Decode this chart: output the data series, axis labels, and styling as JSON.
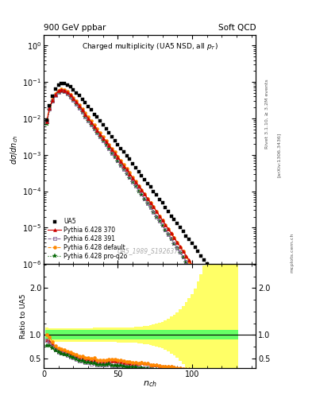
{
  "title_top_left": "900 GeV ppbar",
  "title_top_right": "Soft QCD",
  "plot_title": "Charged multiplicity (UA5 NSD, all p_{T})",
  "xlabel": "n_{ch}",
  "ylabel_main": "d#sigma/dn_{ch}",
  "ylabel_ratio": "Ratio to UA5",
  "right_label1": "Rivet 3.1.10, ≥ 3.2M events",
  "right_label2": "[arXiv:1306.3436]",
  "right_label3": "mcplots.cern.ch",
  "watermark": "UA5_1989_S1926373",
  "ua5_nch": [
    2,
    4,
    6,
    8,
    10,
    12,
    14,
    16,
    18,
    20,
    22,
    24,
    26,
    28,
    30,
    32,
    34,
    36,
    38,
    40,
    42,
    44,
    46,
    48,
    50,
    52,
    54,
    56,
    58,
    60,
    62,
    64,
    66,
    68,
    70,
    72,
    74,
    76,
    78,
    80,
    82,
    84,
    86,
    88,
    90,
    92,
    94,
    96,
    98,
    100,
    102,
    104,
    106,
    108,
    110,
    112,
    114,
    116,
    118,
    120,
    122,
    124,
    126,
    128,
    130
  ],
  "ua5_vals": [
    0.009,
    0.022,
    0.04,
    0.063,
    0.083,
    0.092,
    0.09,
    0.083,
    0.073,
    0.061,
    0.051,
    0.042,
    0.033,
    0.027,
    0.021,
    0.017,
    0.013,
    0.011,
    0.0085,
    0.0067,
    0.0052,
    0.004,
    0.0031,
    0.0025,
    0.0019,
    0.0015,
    0.0012,
    0.00095,
    0.00075,
    0.00058,
    0.00045,
    0.00035,
    0.00027,
    0.00021,
    0.00016,
    0.00013,
    0.0001,
    7.8e-05,
    6e-05,
    4.8e-05,
    3.6e-05,
    2.8e-05,
    2.1e-05,
    1.7e-05,
    1.3e-05,
    1e-05,
    7.8e-06,
    6e-06,
    4.8e-06,
    3.8e-06,
    2.9e-06,
    2.2e-06,
    1.7e-06,
    1.3e-06,
    1e-06,
    7.8e-07,
    6e-07,
    4.5e-07,
    3.5e-07,
    2.8e-07,
    2.2e-07,
    1.5e-07,
    1.1e-07,
    8e-08,
    6.5e-08
  ],
  "py370_nch": [
    2,
    4,
    6,
    8,
    10,
    12,
    14,
    16,
    18,
    20,
    22,
    24,
    26,
    28,
    30,
    32,
    34,
    36,
    38,
    40,
    42,
    44,
    46,
    48,
    50,
    52,
    54,
    56,
    58,
    60,
    62,
    64,
    66,
    68,
    70,
    72,
    74,
    76,
    78,
    80,
    82,
    84,
    86,
    88,
    90,
    92,
    94,
    96,
    98,
    100,
    102,
    104,
    106,
    108,
    110,
    112,
    114,
    116,
    118,
    120,
    122,
    124,
    126,
    128,
    130,
    132,
    134,
    136,
    138,
    140
  ],
  "py370_vals": [
    0.008,
    0.019,
    0.032,
    0.046,
    0.057,
    0.062,
    0.059,
    0.052,
    0.044,
    0.035,
    0.028,
    0.022,
    0.017,
    0.013,
    0.01,
    0.0079,
    0.0061,
    0.0048,
    0.0037,
    0.0029,
    0.0023,
    0.0018,
    0.0014,
    0.0011,
    0.00085,
    0.00065,
    0.0005,
    0.00039,
    0.0003,
    0.00023,
    0.00018,
    0.00014,
    0.00011,
    8.3e-05,
    6.3e-05,
    4.8e-05,
    3.7e-05,
    2.8e-05,
    2.1e-05,
    1.6e-05,
    1.2e-05,
    9.2e-06,
    7e-06,
    5.2e-06,
    3.9e-06,
    3e-06,
    2.2e-06,
    1.7e-06,
    1.3e-06,
    9.5e-07,
    7.2e-07,
    5.4e-07,
    4e-07,
    3e-07,
    2.2e-07,
    1.7e-07,
    1.2e-07,
    9e-08,
    6.7e-08,
    5e-08,
    3.7e-08,
    2.7e-08,
    2e-08,
    1.5e-08,
    1.1e-08,
    8e-09,
    6e-09,
    4.5e-09,
    3.3e-09,
    2.5e-09
  ],
  "py391_nch": [
    2,
    4,
    6,
    8,
    10,
    12,
    14,
    16,
    18,
    20,
    22,
    24,
    26,
    28,
    30,
    32,
    34,
    36,
    38,
    40,
    42,
    44,
    46,
    48,
    50,
    52,
    54,
    56,
    58,
    60,
    62,
    64,
    66,
    68,
    70,
    72,
    74,
    76,
    78,
    80,
    82,
    84,
    86,
    88,
    90,
    92,
    94,
    96,
    98,
    100,
    102,
    104,
    106,
    108,
    110,
    112,
    114,
    116,
    118,
    120,
    122,
    124,
    126,
    128,
    130,
    132,
    134,
    136,
    138,
    140
  ],
  "py391_vals": [
    0.008,
    0.018,
    0.03,
    0.043,
    0.053,
    0.057,
    0.054,
    0.047,
    0.039,
    0.031,
    0.025,
    0.019,
    0.015,
    0.011,
    0.0086,
    0.0066,
    0.0051,
    0.004,
    0.0031,
    0.0024,
    0.0019,
    0.0015,
    0.0011,
    0.00088,
    0.00068,
    0.00052,
    0.0004,
    0.00031,
    0.00024,
    0.00018,
    0.00014,
    0.00011,
    8.2e-05,
    6.2e-05,
    4.7e-05,
    3.6e-05,
    2.7e-05,
    2e-05,
    1.5e-05,
    1.2e-05,
    8.8e-06,
    6.6e-06,
    5e-06,
    3.7e-06,
    2.8e-06,
    2.1e-06,
    1.6e-06,
    1.2e-06,
    9e-07,
    6.7e-07,
    5e-07,
    3.7e-07,
    2.8e-07,
    2e-07,
    1.5e-07,
    1.1e-07,
    8.3e-08,
    6.1e-08,
    4.5e-08,
    3.3e-08,
    2.4e-08,
    1.8e-08,
    1.3e-08,
    9.5e-09,
    7e-09,
    5.1e-09,
    3.8e-09,
    2.8e-09,
    2e-09,
    1.5e-09
  ],
  "pydef_nch": [
    2,
    4,
    6,
    8,
    10,
    12,
    14,
    16,
    18,
    20,
    22,
    24,
    26,
    28,
    30,
    32,
    34,
    36,
    38,
    40,
    42,
    44,
    46,
    48,
    50,
    52,
    54,
    56,
    58,
    60,
    62,
    64,
    66,
    68,
    70,
    72,
    74,
    76,
    78,
    80,
    82,
    84,
    86,
    88,
    90,
    92,
    94,
    96,
    98,
    100,
    102,
    104,
    106,
    108,
    110,
    112,
    114,
    116,
    118,
    120,
    122,
    124,
    126,
    128,
    130,
    132,
    134,
    136,
    138,
    140
  ],
  "pydef_vals": [
    0.009,
    0.021,
    0.034,
    0.048,
    0.059,
    0.064,
    0.061,
    0.054,
    0.046,
    0.037,
    0.03,
    0.023,
    0.018,
    0.014,
    0.011,
    0.0085,
    0.0066,
    0.0051,
    0.004,
    0.0031,
    0.0024,
    0.0019,
    0.0015,
    0.0012,
    0.0009,
    0.00069,
    0.00053,
    0.00041,
    0.00032,
    0.00024,
    0.00019,
    0.00014,
    0.00011,
    8.3e-05,
    6.3e-05,
    4.8e-05,
    3.7e-05,
    2.8e-05,
    2.1e-05,
    1.6e-05,
    1.2e-05,
    9.1e-06,
    6.9e-06,
    5.2e-06,
    3.9e-06,
    2.9e-06,
    2.2e-06,
    1.6e-06,
    1.2e-06,
    9.1e-07,
    6.8e-07,
    5.1e-07,
    3.8e-07,
    2.8e-07,
    2.1e-07,
    1.5e-07,
    1.1e-07,
    8.4e-08,
    6.2e-08,
    4.5e-08,
    3.3e-08,
    2.4e-08,
    1.8e-08,
    1.3e-08,
    9.4e-09,
    6.9e-09,
    5e-09,
    3.7e-09,
    2.7e-09,
    2e-09
  ],
  "pyproq2o_nch": [
    2,
    4,
    6,
    8,
    10,
    12,
    14,
    16,
    18,
    20,
    22,
    24,
    26,
    28,
    30,
    32,
    34,
    36,
    38,
    40,
    42,
    44,
    46,
    48,
    50,
    52,
    54,
    56,
    58,
    60,
    62,
    64,
    66,
    68,
    70,
    72,
    74,
    76,
    78,
    80,
    82,
    84,
    86,
    88,
    90,
    92,
    94,
    96,
    98,
    100,
    102,
    104,
    106,
    108,
    110,
    112,
    114,
    116,
    118,
    120,
    122,
    124,
    126,
    128,
    130,
    132,
    134,
    136,
    138,
    140
  ],
  "pyproq2o_vals": [
    0.007,
    0.017,
    0.029,
    0.042,
    0.052,
    0.056,
    0.053,
    0.047,
    0.039,
    0.031,
    0.025,
    0.019,
    0.015,
    0.011,
    0.0087,
    0.0067,
    0.0052,
    0.004,
    0.0031,
    0.0024,
    0.0019,
    0.0015,
    0.0011,
    0.00086,
    0.00067,
    0.00051,
    0.00039,
    0.0003,
    0.00023,
    0.00018,
    0.00014,
    0.0001,
    7.9e-05,
    6e-05,
    4.6e-05,
    3.5e-05,
    2.6e-05,
    2e-05,
    1.5e-05,
    1.1e-05,
    8.5e-06,
    6.4e-06,
    4.8e-06,
    3.6e-06,
    2.7e-06,
    2e-06,
    1.5e-06,
    1.1e-06,
    8.4e-07,
    6.2e-07,
    4.7e-07,
    3.5e-07,
    2.6e-07,
    1.9e-07,
    1.4e-07,
    1e-07,
    7.6e-08,
    5.6e-08,
    4.1e-08,
    3e-08,
    2.2e-08,
    1.6e-08,
    1.2e-08,
    8.7e-09,
    6.4e-09,
    4.7e-09,
    3.4e-09,
    2.5e-09,
    1.8e-09,
    1.3e-09
  ],
  "ratio_ylim": [
    0.29,
    2.51
  ],
  "ratio_yticks": [
    0.5,
    1.0,
    2.0
  ],
  "xlim": [
    0,
    143
  ]
}
